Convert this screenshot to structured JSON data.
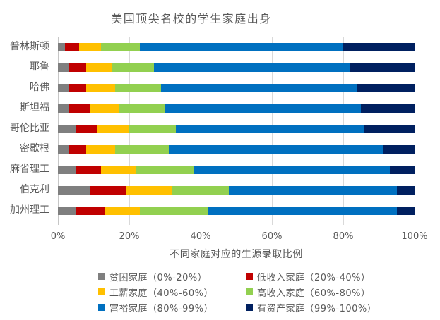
{
  "chart_data": {
    "type": "bar",
    "orientation": "horizontal",
    "stacked": true,
    "title": "美国顶尖名校的学生家庭出身",
    "xlabel": "不同家庭对应的生源录取比例",
    "ylabel": "",
    "xlim": [
      0,
      100
    ],
    "x_ticks": [
      "0%",
      "20%",
      "40%",
      "60%",
      "80%",
      "100%"
    ],
    "grid": true,
    "legend_position": "bottom",
    "grid_color": "#d9d9d9",
    "axis_color": "#c6c6c6",
    "text_color": "#595959",
    "categories": [
      "普林斯顿",
      "耶鲁",
      "哈佛",
      "斯坦福",
      "哥伦比亚",
      "密歇根",
      "麻省理工",
      "伯克利",
      "加州理工"
    ],
    "series": [
      {
        "name": "贫困家庭（0%-20%）",
        "color": "#7f7f7f",
        "values": [
          2,
          3,
          3,
          3,
          5,
          3,
          5,
          9,
          5
        ]
      },
      {
        "name": "低收入家庭（20%-40%）",
        "color": "#c00000",
        "values": [
          4,
          5,
          5,
          6,
          6,
          5,
          7,
          10,
          8
        ]
      },
      {
        "name": "工薪家庭（40%-60%）",
        "color": "#ffc000",
        "values": [
          6,
          7,
          8,
          8,
          9,
          8,
          10,
          13,
          10
        ]
      },
      {
        "name": "高收入家庭（60%-80%）",
        "color": "#92d050",
        "values": [
          11,
          12,
          13,
          13,
          13,
          15,
          16,
          16,
          19
        ]
      },
      {
        "name": "富裕家庭（80%-99%）",
        "color": "#0070c0",
        "values": [
          57,
          55,
          55,
          55,
          53,
          60,
          55,
          47,
          53
        ]
      },
      {
        "name": "有资产家庭（99%-100%）",
        "color": "#002060",
        "values": [
          20,
          18,
          16,
          15,
          14,
          9,
          7,
          5,
          5
        ]
      }
    ]
  }
}
